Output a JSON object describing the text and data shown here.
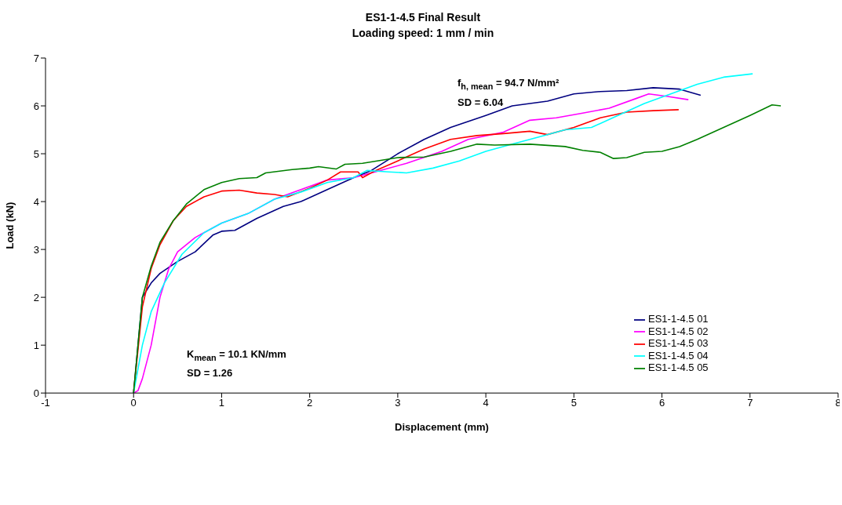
{
  "chart_data": {
    "type": "line",
    "title": "ES1-1-4.5 Final Result",
    "subtitle": "Loading speed: 1 mm / min",
    "xlabel": "Displacement (mm)",
    "ylabel": "Load (kN)",
    "xlim": [
      -1,
      8
    ],
    "xticks": [
      -1,
      0,
      1,
      2,
      3,
      4,
      5,
      6,
      7,
      8
    ],
    "ylim": [
      0,
      7
    ],
    "yticks": [
      0,
      1,
      2,
      3,
      4,
      5,
      6,
      7
    ],
    "grid": false,
    "legend": "right",
    "marker": "none",
    "line_style": "solid",
    "annotations": [
      "f$_{h, mean}$ = 94.7 N/mm²",
      "SD = 6.04",
      "K$_{mean}$ = 10.1 KN/mm",
      "SD = 1.26"
    ],
    "series": [
      {
        "name": "ES1-1-4.5 01",
        "color": "#000080",
        "x": [
          0,
          0.1,
          0.2,
          0.3,
          0.5,
          0.7,
          0.9,
          1.0,
          1.15,
          1.4,
          1.7,
          1.9,
          2.2,
          2.5,
          2.7,
          3.0,
          3.3,
          3.6,
          4.0,
          4.3,
          4.7,
          5.0,
          5.3,
          5.6,
          5.9,
          6.2,
          6.44
        ],
        "values": [
          0,
          2.0,
          2.3,
          2.5,
          2.75,
          2.95,
          3.3,
          3.38,
          3.4,
          3.65,
          3.9,
          4.0,
          4.25,
          4.5,
          4.65,
          5.0,
          5.3,
          5.55,
          5.8,
          6.0,
          6.1,
          6.25,
          6.3,
          6.32,
          6.38,
          6.35,
          6.22
        ]
      },
      {
        "name": "ES1-1-4.5 02",
        "color": "#ff00ff",
        "x": [
          0,
          0.05,
          0.1,
          0.2,
          0.3,
          0.4,
          0.5,
          0.7,
          1.0,
          1.3,
          1.6,
          1.9,
          2.2,
          2.5,
          2.8,
          3.1,
          3.5,
          3.8,
          4.2,
          4.5,
          4.8,
          5.1,
          5.4,
          5.7,
          5.85,
          6.05,
          6.3
        ],
        "values": [
          0,
          0.05,
          0.3,
          1.0,
          2.0,
          2.6,
          2.95,
          3.25,
          3.55,
          3.75,
          4.05,
          4.25,
          4.45,
          4.5,
          4.65,
          4.8,
          5.05,
          5.3,
          5.45,
          5.7,
          5.75,
          5.85,
          5.95,
          6.15,
          6.25,
          6.2,
          6.13
        ]
      },
      {
        "name": "ES1-1-4.5 03",
        "color": "#ff0000",
        "x": [
          0,
          0.1,
          0.2,
          0.3,
          0.45,
          0.6,
          0.8,
          1.0,
          1.2,
          1.4,
          1.6,
          1.75,
          2.0,
          2.2,
          2.35,
          2.55,
          2.6,
          2.75,
          3.0,
          3.3,
          3.6,
          3.9,
          4.2,
          4.5,
          4.7,
          5.0,
          5.3,
          5.6,
          5.9,
          6.19
        ],
        "values": [
          0,
          1.8,
          2.6,
          3.1,
          3.6,
          3.9,
          4.1,
          4.22,
          4.24,
          4.18,
          4.15,
          4.1,
          4.28,
          4.45,
          4.62,
          4.62,
          4.5,
          4.65,
          4.85,
          5.1,
          5.3,
          5.38,
          5.42,
          5.47,
          5.4,
          5.55,
          5.75,
          5.87,
          5.9,
          5.92
        ]
      },
      {
        "name": "ES1-1-4.5 04",
        "color": "#00ffff",
        "x": [
          0,
          0.1,
          0.2,
          0.35,
          0.55,
          0.8,
          1.0,
          1.3,
          1.6,
          1.9,
          2.2,
          2.5,
          2.65,
          2.9,
          3.1,
          3.4,
          3.7,
          4.0,
          4.3,
          4.6,
          4.9,
          5.2,
          5.5,
          5.8,
          6.1,
          6.4,
          6.7,
          7.03
        ],
        "values": [
          0,
          1.0,
          1.7,
          2.3,
          2.9,
          3.35,
          3.55,
          3.75,
          4.05,
          4.2,
          4.4,
          4.5,
          4.65,
          4.62,
          4.6,
          4.7,
          4.85,
          5.05,
          5.2,
          5.35,
          5.5,
          5.55,
          5.8,
          6.05,
          6.25,
          6.45,
          6.6,
          6.67
        ]
      },
      {
        "name": "ES1-1-4.5 05",
        "color": "#008000",
        "x": [
          0,
          0.1,
          0.2,
          0.3,
          0.45,
          0.6,
          0.8,
          1.0,
          1.2,
          1.4,
          1.5,
          1.8,
          2.0,
          2.1,
          2.3,
          2.4,
          2.6,
          3.0,
          3.3,
          3.6,
          3.9,
          4.1,
          4.5,
          4.9,
          5.1,
          5.3,
          5.45,
          5.6,
          5.8,
          6.0,
          6.2,
          6.4,
          6.7,
          7.0,
          7.25,
          7.35
        ],
        "values": [
          0,
          2.0,
          2.65,
          3.15,
          3.6,
          3.95,
          4.25,
          4.4,
          4.48,
          4.5,
          4.6,
          4.67,
          4.7,
          4.73,
          4.68,
          4.78,
          4.8,
          4.92,
          4.93,
          5.05,
          5.2,
          5.18,
          5.2,
          5.15,
          5.07,
          5.03,
          4.9,
          4.92,
          5.03,
          5.05,
          5.15,
          5.3,
          5.55,
          5.8,
          6.02,
          6.0
        ]
      }
    ]
  }
}
